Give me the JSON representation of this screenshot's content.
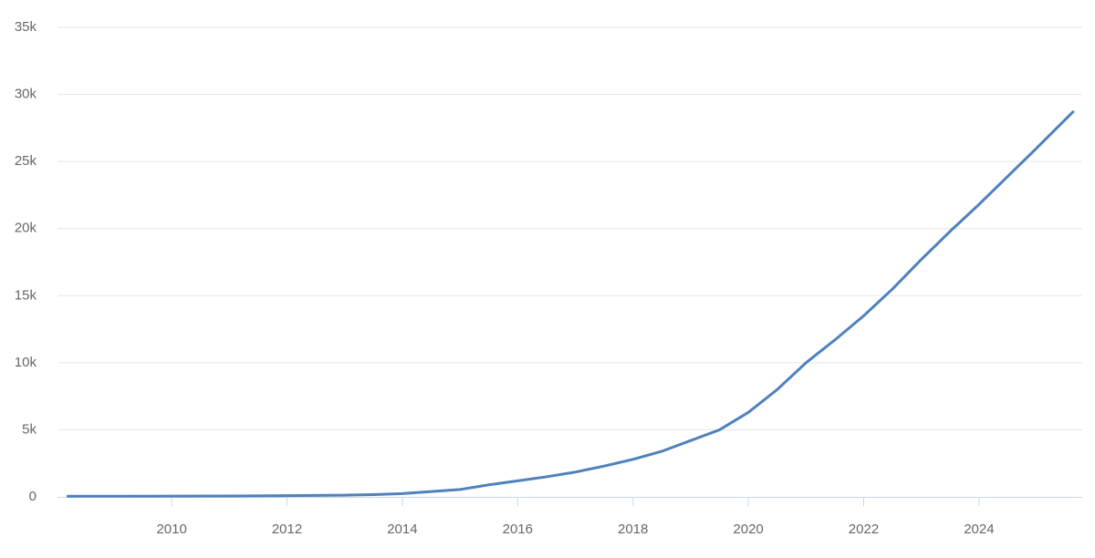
{
  "chart_data": {
    "type": "line",
    "x": [
      2008.2,
      2009,
      2010,
      2011,
      2012,
      2013,
      2013.5,
      2014,
      2014.5,
      2015,
      2015.5,
      2016,
      2016.5,
      2017,
      2017.5,
      2018,
      2018.5,
      2019,
      2019.5,
      2020,
      2020.5,
      2021,
      2021.5,
      2022,
      2022.5,
      2023,
      2023.5,
      2024,
      2024.5,
      2025,
      2025.63
    ],
    "values": [
      50,
      50,
      60,
      70,
      90,
      130,
      170,
      250,
      400,
      550,
      900,
      1200,
      1500,
      1850,
      2300,
      2800,
      3400,
      4200,
      5000,
      6300,
      8000,
      10000,
      11700,
      13500,
      15500,
      17700,
      19800,
      21800,
      23900,
      26000,
      28700
    ],
    "color": "#4f81bd",
    "xlim": [
      2008.02,
      2025.79
    ],
    "xticks": [
      2010,
      2012,
      2014,
      2016,
      2018,
      2020,
      2022,
      2024
    ],
    "ylim": [
      0,
      35000
    ],
    "yticks": [
      0,
      {
        "value": 5000,
        "label": "5k"
      },
      {
        "value": 10000,
        "label": "10k"
      },
      {
        "value": 15000,
        "label": "15k"
      },
      {
        "value": 20000,
        "label": "20k"
      },
      {
        "value": 25000,
        "label": "25k"
      },
      {
        "value": 30000,
        "label": "30k"
      },
      {
        "value": 35000,
        "label": "35k"
      }
    ],
    "grid": true
  }
}
